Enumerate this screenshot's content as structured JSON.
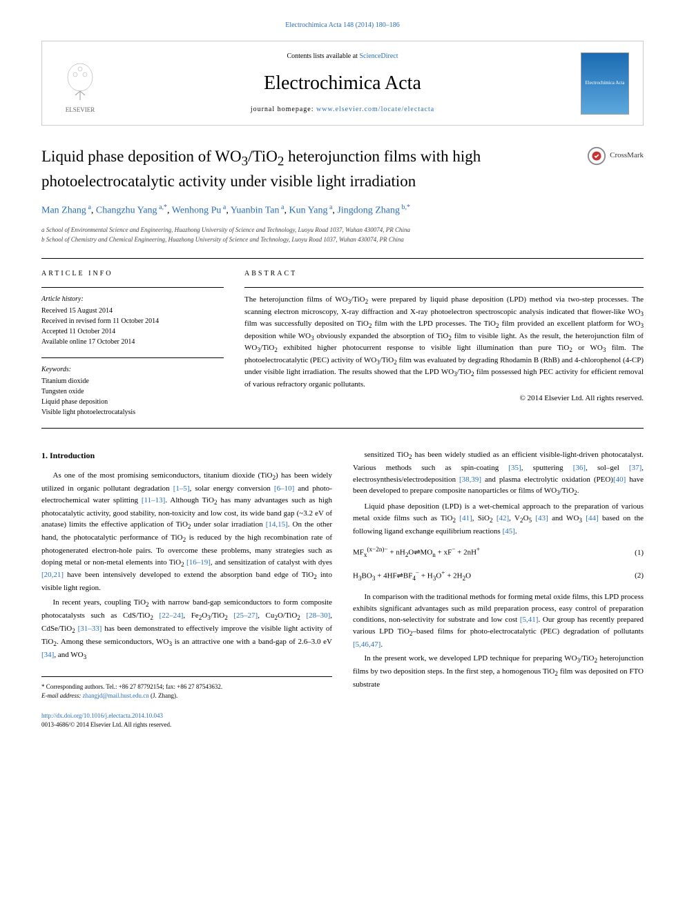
{
  "header": {
    "citation": "Electrochimica Acta 148 (2014) 180–186",
    "contents_prefix": "Contents lists available at ",
    "contents_link": "ScienceDirect",
    "journal_title": "Electrochimica Acta",
    "homepage_prefix": "journal homepage: ",
    "homepage_link": "www.elsevier.com/locate/electacta",
    "publisher": "ELSEVIER",
    "cover_text": "Electrochimica Acta"
  },
  "article": {
    "title_html": "Liquid phase deposition of WO<sub>3</sub>/TiO<sub>2</sub> heterojunction films with high photoelectrocatalytic activity under visible light irradiation",
    "crossmark": "CrossMark",
    "authors": [
      {
        "name": "Man Zhang",
        "sup": "a"
      },
      {
        "name": "Changzhu Yang",
        "sup": "a,*"
      },
      {
        "name": "Wenhong Pu",
        "sup": "a"
      },
      {
        "name": "Yuanbin Tan",
        "sup": "a"
      },
      {
        "name": "Kun Yang",
        "sup": "a"
      },
      {
        "name": "Jingdong Zhang",
        "sup": "b,*"
      }
    ],
    "affiliations": [
      "a School of Environmental Science and Engineering, Huazhong University of Science and Technology, Luoyu Road 1037, Wuhan 430074, PR China",
      "b School of Chemistry and Chemical Engineering, Huazhong University of Science and Technology, Luoyu Road 1037, Wuhan 430074, PR China"
    ]
  },
  "info": {
    "heading": "ARTICLE INFO",
    "history_heading": "Article history:",
    "history": [
      "Received 15 August 2014",
      "Received in revised form 11 October 2014",
      "Accepted 11 October 2014",
      "Available online 17 October 2014"
    ],
    "keywords_heading": "Keywords:",
    "keywords": [
      "Titanium dioxide",
      "Tungsten oxide",
      "Liquid phase deposition",
      "Visible light photoelectrocatalysis"
    ]
  },
  "abstract": {
    "heading": "ABSTRACT",
    "text_html": "The heterojunction films of WO<sub>3</sub>/TiO<sub>2</sub> were prepared by liquid phase deposition (LPD) method via two-step processes. The scanning electron microscopy, X-ray diffraction and X-ray photoelectron spectroscopic analysis indicated that flower-like WO<sub>3</sub> film was successfully deposited on TiO<sub>2</sub> film with the LPD processes. The TiO<sub>2</sub> film provided an excellent platform for WO<sub>3</sub> deposition while WO<sub>3</sub> obviously expanded the absorption of TiO<sub>2</sub> film to visible light. As the result, the heterojunction film of WO<sub>3</sub>/TiO<sub>2</sub> exhibited higher photocurrent response to visible light illumination than pure TiO<sub>2</sub> or WO<sub>3</sub> film. The photoelectrocatalytic (PEC) activity of WO<sub>3</sub>/TiO<sub>2</sub> film was evaluated by degrading Rhodamin B (RhB) and 4-chlorophenol (4-CP) under visible light irradiation. The results showed that the LPD WO<sub>3</sub>/TiO<sub>2</sub> film possessed high PEC activity for efficient removal of various refractory organic pollutants.",
    "copyright": "© 2014 Elsevier Ltd. All rights reserved."
  },
  "body": {
    "section_heading": "1. Introduction",
    "left_paragraphs": [
      "As one of the most promising semiconductors, titanium dioxide (TiO<sub>2</sub>) has been widely utilized in organic pollutant degradation <span class='ref-link'>[1–5]</span>, solar energy conversion <span class='ref-link'>[6–10]</span> and photo-electrochemical water splitting <span class='ref-link'>[11–13]</span>. Although TiO<sub>2</sub> has many advantages such as high photocatalytic activity, good stability, non-toxicity and low cost, its wide band gap (~3.2 eV of anatase) limits the effective application of TiO<sub>2</sub> under solar irradiation <span class='ref-link'>[14,15]</span>. On the other hand, the photocatalytic performance of TiO<sub>2</sub> is reduced by the high recombination rate of photogenerated electron-hole pairs. To overcome these problems, many strategies such as doping metal or non-metal elements into TiO<sub>2</sub> <span class='ref-link'>[16–19]</span>, and sensitization of catalyst with dyes <span class='ref-link'>[20,21]</span> have been intensively developed to extend the absorption band edge of TiO<sub>2</sub> into visible light region.",
      "In recent years, coupling TiO<sub>2</sub> with narrow band-gap semiconductors to form composite photocatalysts such as CdS/TiO<sub>2</sub> <span class='ref-link'>[22–24]</span>, Fe<sub>2</sub>O<sub>3</sub>/TiO<sub>2</sub> <span class='ref-link'>[25–27]</span>, Cu<sub>2</sub>O/TiO<sub>2</sub> <span class='ref-link'>[28–30]</span>, CdSe/TiO<sub>2</sub> <span class='ref-link'>[31–33]</span> has been demonstrated to effectively improve the visible light activity of TiO<sub>2</sub>. Among these semiconductors, WO<sub>3</sub> is an attractive one with a band-gap of 2.6–3.0 eV <span class='ref-link'>[34]</span>, and WO<sub>3</sub>"
    ],
    "right_paragraphs_1": [
      "sensitized TiO<sub>2</sub> has been widely studied as an efficient visible-light-driven photocatalyst. Various methods such as spin-coating <span class='ref-link'>[35]</span>, sputtering <span class='ref-link'>[36]</span>, sol–gel <span class='ref-link'>[37]</span>, electrosynthesis/electrodeposition <span class='ref-link'>[38,39]</span> and plasma electrolytic oxidation (PEO)<span class='ref-link'>[40]</span> have been developed to prepare composite nanoparticles or films of WO<sub>3</sub>/TiO<sub>2</sub>.",
      "Liquid phase deposition (LPD) is a wet-chemical approach to the preparation of various metal oxide films such as TiO<sub>2</sub> <span class='ref-link'>[41]</span>, SiO<sub>2</sub> <span class='ref-link'>[42]</span>, V<sub>2</sub>O<sub>5</sub> <span class='ref-link'>[43]</span> and WO<sub>3</sub> <span class='ref-link'>[44]</span> based on the following ligand exchange equilibrium reactions <span class='ref-link'>[45]</span>."
    ],
    "equations": [
      {
        "formula_html": "MF<sub>x</sub><sup>(x−2n)−</sup> + nH<sub>2</sub>O⇌MO<sub>n</sub> + xF<sup>−</sup> + 2nH<sup>+</sup>",
        "num": "(1)"
      },
      {
        "formula_html": "H<sub>3</sub>BO<sub>3</sub> + 4HF⇌BF<sub>4</sub><sup>−</sup> + H<sub>3</sub>O<sup>+</sup> + 2H<sub>2</sub>O",
        "num": "(2)"
      }
    ],
    "right_paragraphs_2": [
      "In comparison with the traditional methods for forming metal oxide films, this LPD process exhibits significant advantages such as mild preparation process, easy control of preparation conditions, non-selectivity for substrate and low cost <span class='ref-link'>[5,41]</span>. Our group has recently prepared various LPD TiO<sub>2</sub>–based films for photo-electrocatalytic (PEC) degradation of pollutants <span class='ref-link'>[5,46,47]</span>.",
      "In the present work, we developed LPD technique for preparing WO<sub>3</sub>/TiO<sub>2</sub> heterojunction films by two deposition steps. In the first step, a homogenous TiO<sub>2</sub> film was deposited on FTO substrate"
    ]
  },
  "footer": {
    "correspondence": "* Corresponding authors. Tel.: +86 27 87792154; fax: +86 27 87543632.",
    "email_label": "E-mail address:",
    "email": "zhangjd@mail.hust.edu.cn",
    "email_suffix": "(J. Zhang).",
    "doi": "http://dx.doi.org/10.1016/j.electacta.2014.10.043",
    "issn_copyright": "0013-4686/© 2014 Elsevier Ltd. All rights reserved."
  },
  "colors": {
    "link": "#2a6ebb",
    "text": "#000000",
    "border": "#cccccc",
    "rule": "#000000",
    "affil_text": "#444444"
  }
}
